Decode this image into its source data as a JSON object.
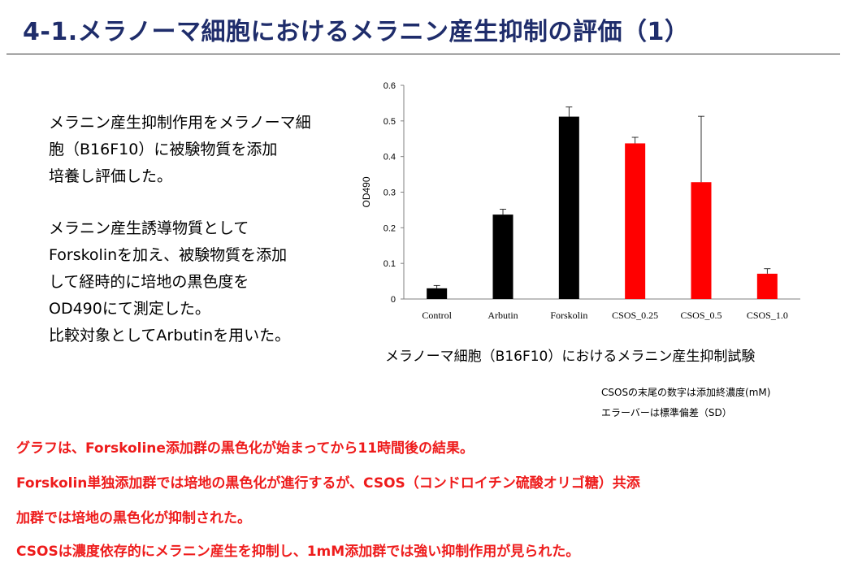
{
  "title": "4-1.メラノーマ細胞におけるメラニン産生抑制の評価（1）",
  "intro": {
    "lines1": [
      "メラニン産生抑制作用をメラノーマ細",
      "胞（B16F10）に被験物質を添加",
      "培養し評価した。"
    ],
    "lines2": [
      "メラニン産生誘導物質として",
      "Forskolinを加え、被験物質を添加",
      "して経時的に培地の黒色度を",
      "OD490にて測定した。",
      "比較対象としてArbutinを用いた。"
    ]
  },
  "chart_caption": "メラノーマ細胞（B16F10）におけるメラニン産生抑制試験",
  "notes": [
    "CSOSの末尾の数字は添加終濃度(mM)",
    "エラーバーは標準偏差（SD）"
  ],
  "conclusions": [
    "グラフは、Forskoline添加群の黒色化が始まってから11時間後の結果。",
    "Forskolin単独添加群では培地の黒色化が進行するが、CSOS（コンドロイチン硫酸オリゴ糖）共添",
    "加群では培地の黒色化が抑制された。",
    "CSOSは濃度依存的にメラニン産生を抑制し、1mM添加群では強い抑制作用が見られた。"
  ],
  "colors": {
    "title": "#1f2d6b",
    "emphasis": "#ee1c1c",
    "bar_control": "#000000",
    "bar_csos": "#ff0000"
  },
  "chart_data": {
    "type": "bar",
    "categories": [
      "Control",
      "Arbutin",
      "Forskolin",
      "CSOS_0.25",
      "CSOS_0.5",
      "CSOS_1.0"
    ],
    "values": [
      0.03,
      0.237,
      0.512,
      0.437,
      0.328,
      0.071
    ],
    "errors": [
      0.008,
      0.015,
      0.027,
      0.017,
      0.185,
      0.014
    ],
    "bar_colors": [
      "#000000",
      "#000000",
      "#000000",
      "#ff0000",
      "#ff0000",
      "#ff0000"
    ],
    "ylabel": "OD490",
    "ylim": [
      0,
      0.6
    ],
    "yticks": [
      "0",
      "0.1",
      "0.2",
      "0.3",
      "0.4",
      "0.5",
      "0.6"
    ],
    "grid": false
  }
}
